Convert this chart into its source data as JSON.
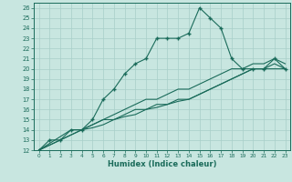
{
  "xlabel": "Humidex (Indice chaleur)",
  "background_color": "#c8e6e0",
  "grid_color": "#a8cec8",
  "line_color": "#1a6b5a",
  "xlim": [
    -0.5,
    23.5
  ],
  "ylim": [
    12,
    26.5
  ],
  "xticks": [
    0,
    1,
    2,
    3,
    4,
    5,
    6,
    7,
    8,
    9,
    10,
    11,
    12,
    13,
    14,
    15,
    16,
    17,
    18,
    19,
    20,
    21,
    22,
    23
  ],
  "yticks": [
    12,
    13,
    14,
    15,
    16,
    17,
    18,
    19,
    20,
    21,
    22,
    23,
    24,
    25,
    26
  ],
  "series": [
    {
      "x": [
        0,
        1,
        2,
        3,
        4,
        5,
        6,
        7,
        8,
        9,
        10,
        11,
        12,
        13,
        14,
        15,
        16,
        17,
        18,
        19,
        20,
        21,
        22,
        23
      ],
      "y": [
        12,
        13,
        13,
        14,
        14,
        15,
        17,
        18,
        19.5,
        20.5,
        21,
        23,
        23,
        23,
        23.5,
        26,
        25,
        24,
        21,
        20,
        20,
        20,
        21,
        20
      ],
      "marker": "+"
    },
    {
      "x": [
        0,
        3,
        4,
        5,
        6,
        7,
        8,
        9,
        10,
        11,
        12,
        13,
        14,
        15,
        16,
        17,
        18,
        19,
        20,
        21,
        22,
        23
      ],
      "y": [
        12,
        14,
        14,
        14.5,
        15,
        15,
        15.5,
        16,
        16,
        16.5,
        16.5,
        17,
        17,
        17.5,
        18,
        18.5,
        19,
        19.5,
        20,
        20,
        20,
        20
      ],
      "marker": null
    },
    {
      "x": [
        0,
        3,
        4,
        5,
        6,
        7,
        8,
        9,
        10,
        11,
        12,
        13,
        14,
        15,
        16,
        17,
        18,
        19,
        20,
        21,
        22,
        23
      ],
      "y": [
        12,
        13.5,
        14,
        14.5,
        15,
        15.5,
        16,
        16.5,
        17,
        17,
        17.5,
        18,
        18,
        18.5,
        19,
        19.5,
        20,
        20,
        20.5,
        20.5,
        21,
        20.5
      ],
      "marker": null
    },
    {
      "x": [
        0,
        3,
        4,
        5,
        6,
        7,
        8,
        9,
        10,
        11,
        12,
        13,
        14,
        15,
        16,
        17,
        18,
        19,
        20,
        21,
        22,
        23
      ],
      "y": [
        12,
        13.5,
        14,
        14.2,
        14.5,
        15,
        15.3,
        15.5,
        16,
        16.2,
        16.5,
        16.8,
        17,
        17.5,
        18,
        18.5,
        19,
        19.5,
        20,
        20,
        20.5,
        20
      ],
      "marker": null
    }
  ]
}
